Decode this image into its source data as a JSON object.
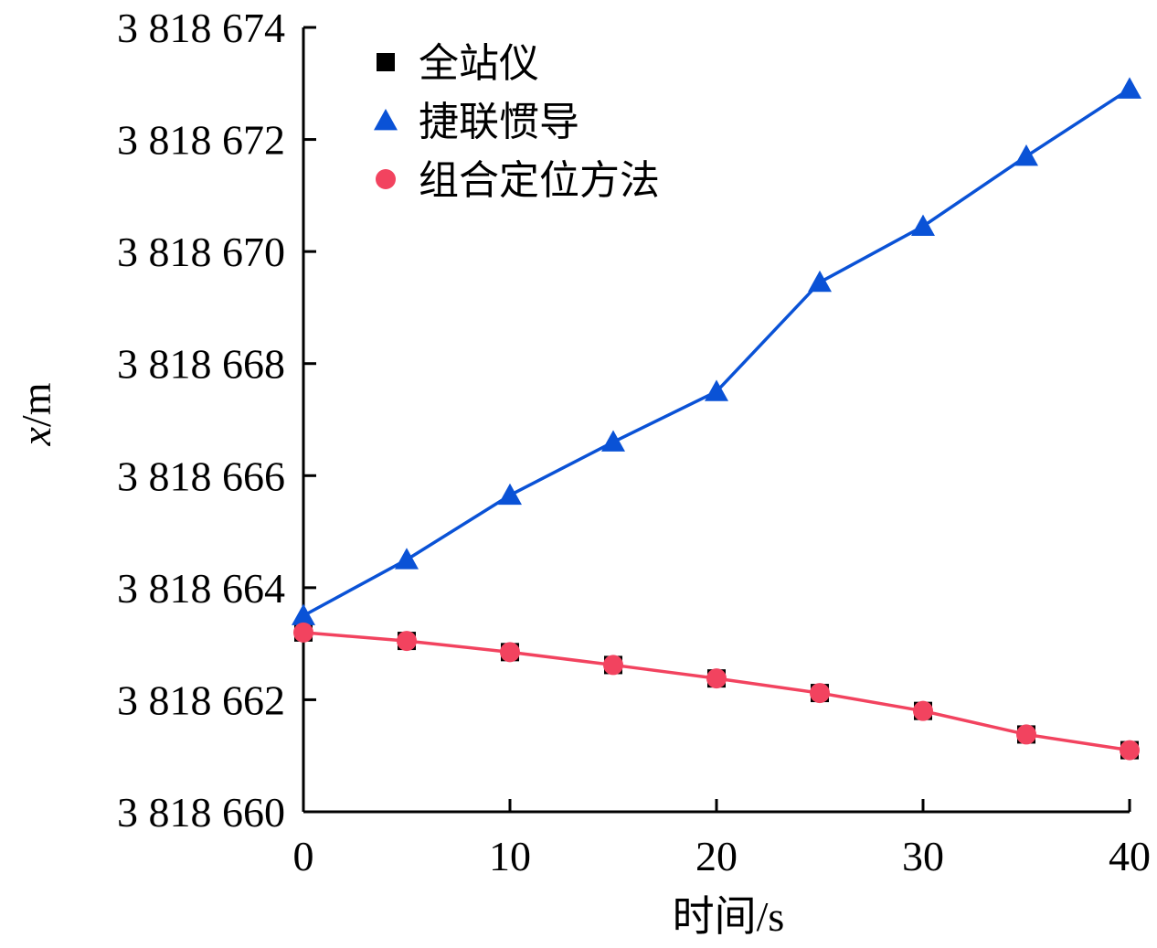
{
  "chart_data": {
    "type": "line",
    "title": "",
    "xlabel": "时间/s",
    "ylabel_var": "x",
    "ylabel_unit": "/m",
    "xlim": [
      0,
      40
    ],
    "ylim": [
      3818660,
      3818674
    ],
    "x_ticks": [
      0,
      10,
      20,
      30,
      40
    ],
    "x_tick_labels": [
      "0",
      "10",
      "20",
      "30",
      "40"
    ],
    "y_ticks": [
      3818660,
      3818662,
      3818664,
      3818666,
      3818668,
      3818670,
      3818672,
      3818674
    ],
    "y_tick_labels": [
      "3 818 660",
      "3 818 662",
      "3 818 664",
      "3 818 666",
      "3 818 668",
      "3 818 670",
      "3 818 672",
      "3 818 674"
    ],
    "x": [
      0,
      5,
      10,
      15,
      20,
      25,
      30,
      35,
      40
    ],
    "grid": false,
    "legend_position": "top-left",
    "series": [
      {
        "name": "全站仪",
        "marker": "square",
        "line": false,
        "color": "#000000",
        "values": [
          3818663.2,
          3818663.05,
          3818662.85,
          3818662.62,
          3818662.38,
          3818662.12,
          3818661.8,
          3818661.38,
          3818661.1
        ]
      },
      {
        "name": "捷联惯导",
        "marker": "triangle",
        "line": true,
        "color": "#0a52d6",
        "values": [
          3818663.5,
          3818664.5,
          3818665.65,
          3818666.6,
          3818667.5,
          3818669.45,
          3818670.45,
          3818671.7,
          3818672.9
        ]
      },
      {
        "name": "组合定位方法",
        "marker": "circle",
        "line": true,
        "color": "#f2435f",
        "values": [
          3818663.2,
          3818663.05,
          3818662.85,
          3818662.62,
          3818662.38,
          3818662.12,
          3818661.8,
          3818661.38,
          3818661.1
        ]
      }
    ]
  }
}
